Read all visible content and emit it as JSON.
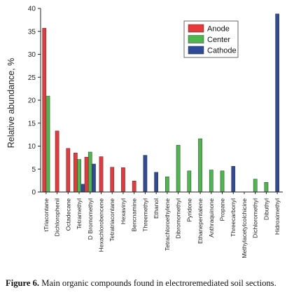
{
  "chart_data": {
    "type": "bar",
    "ylabel": "Relative abundance, %",
    "xlabel": "",
    "ylim": [
      0,
      40
    ],
    "yticks": [
      0,
      5,
      10,
      15,
      20,
      25,
      30,
      35,
      40
    ],
    "grid": false,
    "legend_position": "top-right",
    "categories": [
      "tTriacontane",
      "Dichlorophenil",
      "Octadecane",
      "Tetramethyl",
      "D Bromomethyl",
      "Hexachlorobencene",
      "Tetratriacontane",
      "Hexavinyl",
      "Bencnamine",
      "Threemethyl",
      "Ethanol",
      "Tetrachloroethylene",
      "Dibromomethyl",
      "Pyridone",
      "Ethanepentalene",
      "Anthraquinone",
      "Propane",
      "Threecarbonyl",
      "Methylacetylcolchicine",
      "Dichloromethyl",
      "Dibuthyl",
      "Hidroximethyl"
    ],
    "series": [
      {
        "name": "Anode",
        "color": "#e8383c",
        "values": [
          35.7,
          13.3,
          9.5,
          8.5,
          7.6,
          7.7,
          5.4,
          5.3,
          2.4,
          null,
          null,
          null,
          null,
          null,
          null,
          null,
          null,
          null,
          null,
          null,
          null,
          null
        ]
      },
      {
        "name": "Center",
        "color": "#4cb84c",
        "values": [
          20.9,
          null,
          null,
          7.1,
          8.7,
          null,
          null,
          null,
          null,
          null,
          null,
          3.3,
          10.2,
          4.6,
          11.6,
          4.8,
          4.6,
          null,
          null,
          2.8,
          2.1,
          null
        ]
      },
      {
        "name": "Cathode",
        "color": "#2e4a9a",
        "values": [
          null,
          null,
          null,
          1.7,
          6.1,
          null,
          null,
          null,
          null,
          8.0,
          4.3,
          null,
          null,
          null,
          null,
          null,
          null,
          5.6,
          null,
          null,
          null,
          38.8
        ]
      }
    ]
  },
  "caption": {
    "label": "Figure 6.",
    "text": " Main organic compounds found in electroremediated soil sections."
  }
}
